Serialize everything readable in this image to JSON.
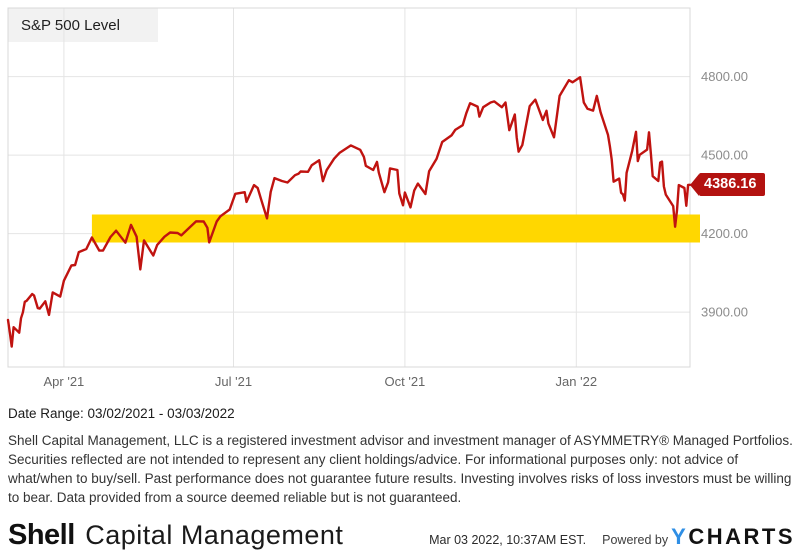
{
  "chart": {
    "series_label_text": "S&P 500 Level"
  },
  "chart_data": {
    "type": "line",
    "title": "S&P 500 Level",
    "x_start": "2021-03-02",
    "x_end": "2022-03-03",
    "xlabel": "",
    "ylabel": "",
    "ylim": [
      3690,
      5062
    ],
    "grid": true,
    "legend_position": "none",
    "x_ticks": [
      {
        "date": "2021-04-01",
        "label": "Apr '21"
      },
      {
        "date": "2021-07-01",
        "label": "Jul '21"
      },
      {
        "date": "2021-10-01",
        "label": "Oct '21"
      },
      {
        "date": "2022-01-01",
        "label": "Jan '22"
      }
    ],
    "y_ticks": [
      {
        "value": 4800,
        "label": "4800.00"
      },
      {
        "value": 4500,
        "label": "4500.00"
      },
      {
        "value": 4200,
        "label": "4200.00"
      },
      {
        "value": 3900,
        "label": "3900.00"
      }
    ],
    "highlight_band": {
      "color": "#ffd700",
      "value_from": 4166,
      "value_to": 4273,
      "start_date": "2021-04-16"
    },
    "last_value_label": {
      "text": "4386.16",
      "value": 4386.16,
      "color": "#b31210"
    },
    "line_color": "#c01310",
    "grid_color": "#e4e4e4",
    "border_color": "#d8d8d8",
    "label_box_color": "#f2f2f2",
    "series": [
      {
        "name": "S&P 500 Level",
        "color": "#c01310",
        "points": [
          [
            "2021-03-02",
            3870
          ],
          [
            "2021-03-03",
            3820
          ],
          [
            "2021-03-04",
            3768
          ],
          [
            "2021-03-05",
            3842
          ],
          [
            "2021-03-08",
            3821
          ],
          [
            "2021-03-09",
            3876
          ],
          [
            "2021-03-10",
            3899
          ],
          [
            "2021-03-11",
            3939
          ],
          [
            "2021-03-12",
            3943
          ],
          [
            "2021-03-15",
            3969
          ],
          [
            "2021-03-16",
            3963
          ],
          [
            "2021-03-18",
            3915
          ],
          [
            "2021-03-19",
            3913
          ],
          [
            "2021-03-22",
            3941
          ],
          [
            "2021-03-24",
            3889
          ],
          [
            "2021-03-26",
            3975
          ],
          [
            "2021-03-30",
            3959
          ],
          [
            "2021-04-01",
            4020
          ],
          [
            "2021-04-05",
            4078
          ],
          [
            "2021-04-07",
            4080
          ],
          [
            "2021-04-09",
            4129
          ],
          [
            "2021-04-13",
            4141
          ],
          [
            "2021-04-16",
            4185
          ],
          [
            "2021-04-20",
            4135
          ],
          [
            "2021-04-22",
            4135
          ],
          [
            "2021-04-26",
            4187
          ],
          [
            "2021-04-29",
            4211
          ],
          [
            "2021-05-04",
            4165
          ],
          [
            "2021-05-07",
            4233
          ],
          [
            "2021-05-10",
            4188
          ],
          [
            "2021-05-12",
            4063
          ],
          [
            "2021-05-14",
            4174
          ],
          [
            "2021-05-18",
            4127
          ],
          [
            "2021-05-19",
            4116
          ],
          [
            "2021-05-21",
            4156
          ],
          [
            "2021-05-25",
            4188
          ],
          [
            "2021-05-28",
            4204
          ],
          [
            "2021-06-01",
            4202
          ],
          [
            "2021-06-03",
            4193
          ],
          [
            "2021-06-08",
            4227
          ],
          [
            "2021-06-11",
            4247
          ],
          [
            "2021-06-15",
            4246
          ],
          [
            "2021-06-17",
            4222
          ],
          [
            "2021-06-18",
            4166
          ],
          [
            "2021-06-22",
            4246
          ],
          [
            "2021-06-24",
            4266
          ],
          [
            "2021-06-29",
            4292
          ],
          [
            "2021-07-02",
            4352
          ],
          [
            "2021-07-07",
            4358
          ],
          [
            "2021-07-08",
            4321
          ],
          [
            "2021-07-12",
            4385
          ],
          [
            "2021-07-14",
            4374
          ],
          [
            "2021-07-16",
            4327
          ],
          [
            "2021-07-19",
            4258
          ],
          [
            "2021-07-21",
            4359
          ],
          [
            "2021-07-23",
            4412
          ],
          [
            "2021-07-27",
            4401
          ],
          [
            "2021-07-30",
            4395
          ],
          [
            "2021-08-03",
            4423
          ],
          [
            "2021-08-05",
            4429
          ],
          [
            "2021-08-06",
            4437
          ],
          [
            "2021-08-10",
            4436
          ],
          [
            "2021-08-12",
            4461
          ],
          [
            "2021-08-16",
            4480
          ],
          [
            "2021-08-18",
            4400
          ],
          [
            "2021-08-20",
            4442
          ],
          [
            "2021-08-24",
            4486
          ],
          [
            "2021-08-27",
            4509
          ],
          [
            "2021-09-02",
            4537
          ],
          [
            "2021-09-07",
            4520
          ],
          [
            "2021-09-09",
            4493
          ],
          [
            "2021-09-10",
            4459
          ],
          [
            "2021-09-14",
            4443
          ],
          [
            "2021-09-16",
            4474
          ],
          [
            "2021-09-17",
            4433
          ],
          [
            "2021-09-20",
            4358
          ],
          [
            "2021-09-22",
            4396
          ],
          [
            "2021-09-23",
            4449
          ],
          [
            "2021-09-27",
            4443
          ],
          [
            "2021-09-28",
            4353
          ],
          [
            "2021-09-30",
            4308
          ],
          [
            "2021-10-01",
            4357
          ],
          [
            "2021-10-04",
            4300
          ],
          [
            "2021-10-06",
            4364
          ],
          [
            "2021-10-08",
            4391
          ],
          [
            "2021-10-12",
            4351
          ],
          [
            "2021-10-14",
            4438
          ],
          [
            "2021-10-18",
            4486
          ],
          [
            "2021-10-21",
            4550
          ],
          [
            "2021-10-26",
            4575
          ],
          [
            "2021-10-28",
            4596
          ],
          [
            "2021-11-01",
            4614
          ],
          [
            "2021-11-03",
            4661
          ],
          [
            "2021-11-05",
            4698
          ],
          [
            "2021-11-09",
            4685
          ],
          [
            "2021-11-10",
            4647
          ],
          [
            "2021-11-12",
            4683
          ],
          [
            "2021-11-16",
            4701
          ],
          [
            "2021-11-18",
            4705
          ],
          [
            "2021-11-22",
            4683
          ],
          [
            "2021-11-24",
            4701
          ],
          [
            "2021-11-26",
            4595
          ],
          [
            "2021-11-29",
            4655
          ],
          [
            "2021-11-30",
            4567
          ],
          [
            "2021-12-01",
            4513
          ],
          [
            "2021-12-03",
            4538
          ],
          [
            "2021-12-07",
            4687
          ],
          [
            "2021-12-10",
            4712
          ],
          [
            "2021-12-14",
            4634
          ],
          [
            "2021-12-16",
            4669
          ],
          [
            "2021-12-17",
            4621
          ],
          [
            "2021-12-20",
            4568
          ],
          [
            "2021-12-23",
            4726
          ],
          [
            "2021-12-28",
            4786
          ],
          [
            "2021-12-30",
            4778
          ],
          [
            "2022-01-03",
            4797
          ],
          [
            "2022-01-05",
            4701
          ],
          [
            "2022-01-07",
            4677
          ],
          [
            "2022-01-10",
            4670
          ],
          [
            "2022-01-12",
            4726
          ],
          [
            "2022-01-14",
            4663
          ],
          [
            "2022-01-18",
            4577
          ],
          [
            "2022-01-19",
            4533
          ],
          [
            "2022-01-20",
            4483
          ],
          [
            "2022-01-21",
            4398
          ],
          [
            "2022-01-24",
            4410
          ],
          [
            "2022-01-25",
            4356
          ],
          [
            "2022-01-26",
            4350
          ],
          [
            "2022-01-27",
            4326
          ],
          [
            "2022-01-28",
            4432
          ],
          [
            "2022-01-31",
            4516
          ],
          [
            "2022-02-02",
            4589
          ],
          [
            "2022-02-03",
            4477
          ],
          [
            "2022-02-04",
            4501
          ],
          [
            "2022-02-08",
            4521
          ],
          [
            "2022-02-09",
            4587
          ],
          [
            "2022-02-10",
            4504
          ],
          [
            "2022-02-11",
            4419
          ],
          [
            "2022-02-14",
            4401
          ],
          [
            "2022-02-15",
            4471
          ],
          [
            "2022-02-16",
            4475
          ],
          [
            "2022-02-17",
            4380
          ],
          [
            "2022-02-18",
            4349
          ],
          [
            "2022-02-22",
            4305
          ],
          [
            "2022-02-23",
            4226
          ],
          [
            "2022-02-24",
            4289
          ],
          [
            "2022-02-25",
            4385
          ],
          [
            "2022-02-28",
            4374
          ],
          [
            "2022-03-01",
            4306
          ],
          [
            "2022-03-02",
            4386
          ],
          [
            "2022-03-03",
            4386.16
          ]
        ]
      }
    ]
  },
  "footer": {
    "date_range": "Date Range: 03/02/2021 - 03/03/2022",
    "disclaimer": "Shell Capital Management, LLC is a registered investment advisor and investment manager of ASYMMETRY® Managed Portfolios. Securities reflected are not intended to represent any client holdings/advice. For informational purposes only: not advice of what/when to buy/sell. Past performance does not guarantee future results. Investing involves risks of loss investors must be willing to bear. Data provided from a source deemed reliable but is not guaranteed.",
    "logo": {
      "bold": "Shell",
      "rest": "Capital Management"
    },
    "timestamp": "Mar 03 2022, 10:37AM EST.",
    "powered_by": "Powered by",
    "ycharts": {
      "y": "Y",
      "rest": "CHARTS",
      "y_color": "#2f8fe5"
    }
  }
}
